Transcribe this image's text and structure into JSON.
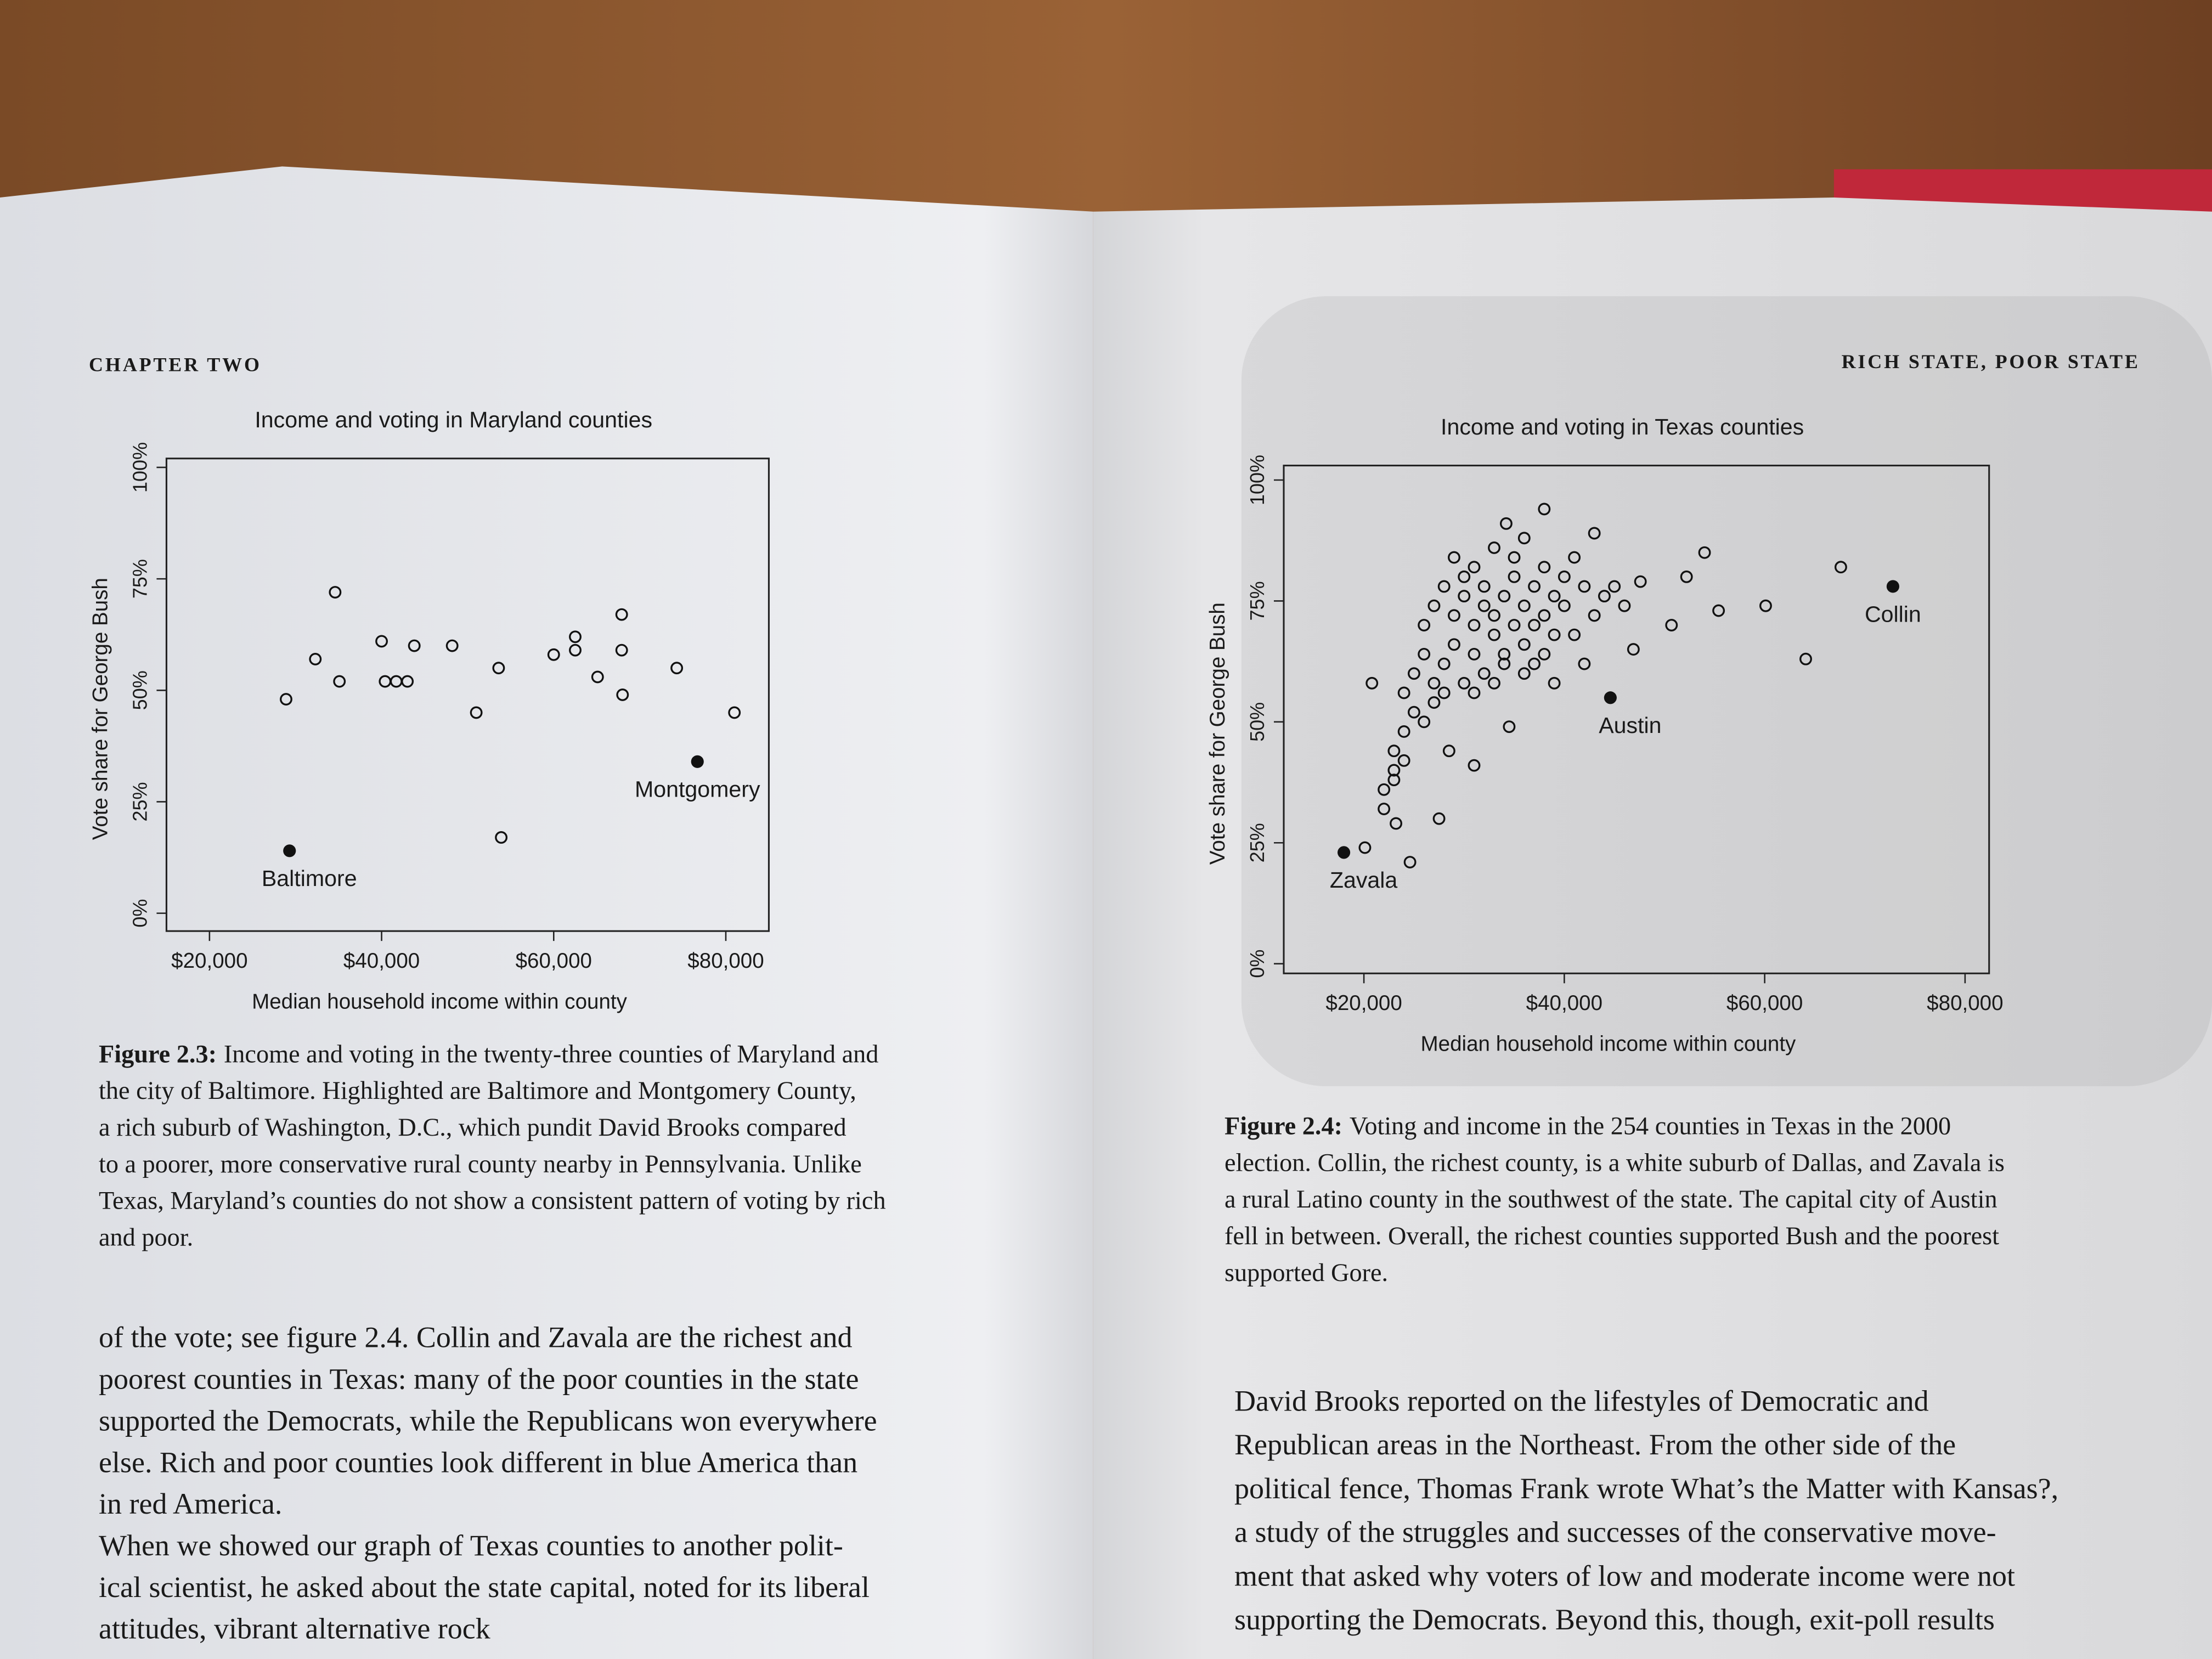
{
  "page": {
    "header_left": "CHAPTER TWO",
    "header_right": "RICH STATE, POOR STATE",
    "caption_left": {
      "label": "Figure 2.3:",
      "lines": [
        "Income and voting in the twenty-three counties of Maryland and",
        "the city of Baltimore. Highlighted are Baltimore and Montgomery County,",
        "a rich suburb of Washington, D.C., which pundit David Brooks compared",
        "to a poorer, more conservative rural county nearby in Pennsylvania. Unlike",
        "Texas, Maryland’s counties do not show a consistent pattern of voting by rich",
        "and poor."
      ]
    },
    "body_left": [
      "of the vote; see figure 2.4. Collin and Zavala are the richest and",
      "poorest counties in Texas: many of the poor counties in the state",
      "supported the Democrats, while the Republicans won everywhere",
      "else. Rich and poor counties look different in blue America than",
      "in red America.",
      "When we showed our graph of Texas counties to another polit-",
      "ical scientist, he asked about the state capital, noted for its liberal",
      "attitudes, vibrant alternative rock"
    ],
    "caption_right": {
      "label": "Figure 2.4:",
      "lines": [
        "Voting and income in the 254 counties in Texas in the 2000",
        "election. Collin, the richest county, is a white suburb of Dallas, and Zavala is",
        "a rural Latino county in the southwest of the state. The capital city of Austin",
        "fell in between. Overall, the richest counties supported Bush and the poorest",
        "supported Gore."
      ]
    },
    "body_right": [
      "David Brooks reported on the lifestyles of Democratic and",
      "Republican areas in the Northeast. From the other side of the",
      "political fence, Thomas Frank wrote What’s the Matter with Kansas?,",
      "a study of the struggles and successes of the conservative move-",
      "ment that asked why voters of low and moderate income were not",
      "supporting the Democrats. Beyond this, though, exit-poll results"
    ]
  },
  "chart_data": [
    {
      "type": "scatter",
      "title": "Income and voting in Maryland counties",
      "xlabel": "Median household income within county",
      "ylabel": "Vote share for George Bush",
      "xlim": [
        15000,
        85000
      ],
      "ylim": [
        -4,
        102
      ],
      "xticks": [
        {
          "value": 20000,
          "label": "$20,000"
        },
        {
          "value": 40000,
          "label": "$40,000"
        },
        {
          "value": 60000,
          "label": "$60,000"
        },
        {
          "value": 80000,
          "label": "$80,000"
        }
      ],
      "yticks": [
        {
          "value": 0,
          "label": "0%"
        },
        {
          "value": 25,
          "label": "25%"
        },
        {
          "value": 50,
          "label": "50%"
        },
        {
          "value": 75,
          "label": "75%"
        },
        {
          "value": 100,
          "label": "100%"
        }
      ],
      "color": "#111111",
      "x": [
        34600,
        28900,
        32300,
        35100,
        40000,
        40400,
        41700,
        43000,
        43800,
        48200,
        51000,
        53600,
        53900,
        60000,
        62500,
        62500,
        65100,
        67900,
        67900,
        68000,
        74300,
        81000
      ],
      "y": [
        72,
        48,
        57,
        52,
        61,
        52,
        52,
        52,
        60,
        60,
        45,
        55,
        17,
        58,
        59,
        62,
        53,
        67,
        59,
        49,
        55,
        45
      ],
      "highlighted": [
        {
          "label": "Baltimore",
          "x": 29300,
          "y": 14
        },
        {
          "label": "Montgomery",
          "x": 76700,
          "y": 34
        }
      ]
    },
    {
      "type": "scatter",
      "title": "Income and voting in Texas counties",
      "xlabel": "Median household income within county",
      "ylabel": "Vote share for George Bush",
      "xlim": [
        12000,
        82400
      ],
      "ylim": [
        -2,
        103
      ],
      "xticks": [
        {
          "value": 20000,
          "label": "$20,000"
        },
        {
          "value": 40000,
          "label": "$40,000"
        },
        {
          "value": 60000,
          "label": "$60,000"
        },
        {
          "value": 80000,
          "label": "$80,000"
        }
      ],
      "yticks": [
        {
          "value": 0,
          "label": "0%"
        },
        {
          "value": 25,
          "label": "25%"
        },
        {
          "value": 50,
          "label": "50%"
        },
        {
          "value": 75,
          "label": "75%"
        },
        {
          "value": 100,
          "label": "100%"
        }
      ],
      "color": "#111111",
      "x": [
        67600,
        64100,
        60100,
        55400,
        54000,
        52200,
        47600,
        43000,
        38000,
        34200,
        50700,
        46900,
        24600,
        20100,
        27500,
        23200,
        20800,
        34500,
        31000,
        28500,
        26000,
        27000,
        28000,
        29000,
        29000,
        30000,
        30000,
        31000,
        31000,
        32000,
        32000,
        33000,
        33000,
        34000,
        34000,
        35000,
        35000,
        36000,
        36000,
        37000,
        37000,
        38000,
        38000,
        39000,
        39000,
        40000,
        40000,
        41000,
        42000,
        28000,
        27000,
        26000,
        25000,
        24000,
        25000,
        24000,
        23000,
        23000,
        22000,
        22000,
        23000,
        24000,
        26000,
        27000,
        28000,
        30000,
        31000,
        32000,
        33000,
        34000,
        36000,
        37000,
        29000,
        33000,
        35000,
        36000,
        31000,
        41000,
        43000,
        42000,
        39000,
        38000,
        44000,
        45000,
        46000
      ],
      "y": [
        82,
        63,
        74,
        73,
        85,
        80,
        79,
        89,
        94,
        91,
        70,
        65,
        21,
        24,
        30,
        29,
        58,
        49,
        41,
        44,
        70,
        74,
        78,
        72,
        66,
        76,
        80,
        70,
        64,
        74,
        78,
        68,
        72,
        76,
        62,
        70,
        80,
        74,
        66,
        78,
        70,
        82,
        72,
        76,
        68,
        80,
        74,
        84,
        78,
        62,
        58,
        64,
        60,
        56,
        52,
        48,
        44,
        40,
        36,
        32,
        38,
        42,
        50,
        54,
        56,
        58,
        56,
        60,
        58,
        64,
        60,
        62,
        84,
        86,
        84,
        88,
        82,
        68,
        72,
        62,
        58,
        64,
        76,
        78,
        74
      ],
      "highlighted": [
        {
          "label": "Collin",
          "x": 72800,
          "y": 78
        },
        {
          "label": "Austin",
          "x": 44600,
          "y": 55
        },
        {
          "label": "Zavala",
          "x": 18000,
          "y": 23
        }
      ]
    }
  ]
}
